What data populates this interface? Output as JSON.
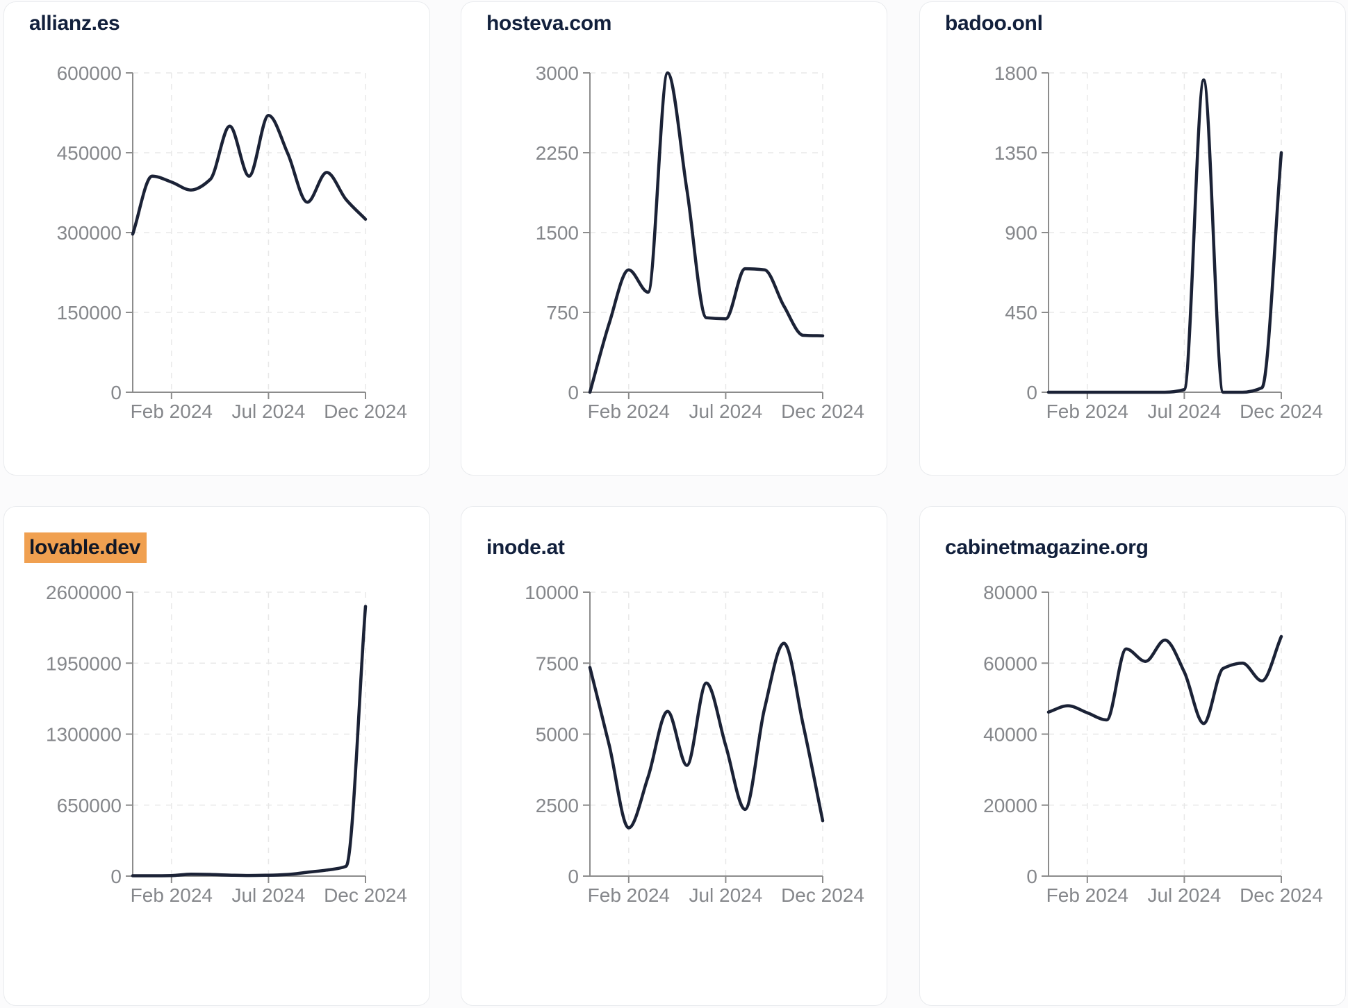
{
  "style": {
    "page_background": "#fbfbfc",
    "card_background": "#ffffff",
    "card_border": "#e9ebee",
    "line_color": "#1b2236",
    "axis_color": "#8c8c8c",
    "tick_label_color": "#85878b",
    "grid_color": "#e8e8e8",
    "title_color": "#12203c",
    "highlight_color": "#f0a050"
  },
  "x_axis": {
    "tick_labels": [
      "Feb 2024",
      "Jul 2024",
      "Dec 2024"
    ],
    "tick_month_indices": [
      2,
      7,
      12
    ]
  },
  "chart_data": [
    {
      "type": "line",
      "title": "allianz.es",
      "highlighted": false,
      "row": 1,
      "col": 1,
      "x": [
        "Dec 2023",
        "Jan 2024",
        "Feb 2024",
        "Mar 2024",
        "Apr 2024",
        "May 2024",
        "Jun 2024",
        "Jul 2024",
        "Aug 2024",
        "Sep 2024",
        "Oct 2024",
        "Nov 2024",
        "Dec 2024"
      ],
      "values": [
        297000,
        406000,
        395000,
        380000,
        400000,
        500000,
        406000,
        520000,
        448000,
        357000,
        413000,
        362000,
        325000
      ],
      "y_ticks": [
        0,
        150000,
        300000,
        450000,
        600000
      ],
      "ylim": [
        0,
        600000
      ],
      "x_tick_labels": [
        "Feb 2024",
        "Jul 2024",
        "Dec 2024"
      ],
      "grid": true,
      "legend": "none"
    },
    {
      "type": "line",
      "title": "hosteva.com",
      "highlighted": false,
      "row": 1,
      "col": 2,
      "x": [
        "Dec 2023",
        "Jan 2024",
        "Feb 2024",
        "Mar 2024",
        "Apr 2024",
        "May 2024",
        "Jun 2024",
        "Jul 2024",
        "Aug 2024",
        "Sep 2024",
        "Oct 2024",
        "Nov 2024",
        "Dec 2024"
      ],
      "values": [
        0,
        650,
        1150,
        940,
        3000,
        1900,
        700,
        690,
        1160,
        1150,
        810,
        535,
        530
      ],
      "y_ticks": [
        0,
        750,
        1500,
        2250,
        3000
      ],
      "ylim": [
        0,
        3000
      ],
      "x_tick_labels": [
        "Feb 2024",
        "Jul 2024",
        "Dec 2024"
      ],
      "grid": true,
      "legend": "none"
    },
    {
      "type": "line",
      "title": "badoo.onl",
      "highlighted": false,
      "row": 1,
      "col": 3,
      "x": [
        "Dec 2023",
        "Jan 2024",
        "Feb 2024",
        "Mar 2024",
        "Apr 2024",
        "May 2024",
        "Jun 2024",
        "Jul 2024",
        "Aug 2024",
        "Sep 2024",
        "Oct 2024",
        "Nov 2024",
        "Dec 2024"
      ],
      "values": [
        0,
        0,
        0,
        0,
        0,
        0,
        0,
        15,
        1760,
        0,
        0,
        25,
        1350
      ],
      "y_ticks": [
        0,
        450,
        900,
        1350,
        1800
      ],
      "ylim": [
        0,
        1800
      ],
      "x_tick_labels": [
        "Feb 2024",
        "Jul 2024",
        "Dec 2024"
      ],
      "grid": true,
      "legend": "none"
    },
    {
      "type": "line",
      "title": "lovable.dev",
      "highlighted": true,
      "row": 2,
      "col": 1,
      "x": [
        "Dec 2023",
        "Jan 2024",
        "Feb 2024",
        "Mar 2024",
        "Apr 2024",
        "May 2024",
        "Jun 2024",
        "Jul 2024",
        "Aug 2024",
        "Sep 2024",
        "Oct 2024",
        "Nov 2024",
        "Dec 2024"
      ],
      "values": [
        3000,
        3000,
        5000,
        18000,
        15000,
        9000,
        6000,
        8000,
        15000,
        35000,
        55000,
        90000,
        2470000
      ],
      "y_ticks": [
        0,
        650000,
        1300000,
        1950000,
        2600000
      ],
      "ylim": [
        0,
        2600000
      ],
      "x_tick_labels": [
        "Feb 2024",
        "Jul 2024",
        "Dec 2024"
      ],
      "grid": true,
      "legend": "none"
    },
    {
      "type": "line",
      "title": "inode.at",
      "highlighted": false,
      "row": 2,
      "col": 2,
      "x": [
        "Dec 2023",
        "Jan 2024",
        "Feb 2024",
        "Mar 2024",
        "Apr 2024",
        "May 2024",
        "Jun 2024",
        "Jul 2024",
        "Aug 2024",
        "Sep 2024",
        "Oct 2024",
        "Nov 2024",
        "Dec 2024"
      ],
      "values": [
        7350,
        4600,
        1700,
        3500,
        5800,
        3900,
        6800,
        4600,
        2350,
        5900,
        8200,
        5300,
        1950
      ],
      "y_ticks": [
        0,
        2500,
        5000,
        7500,
        10000
      ],
      "ylim": [
        0,
        10000
      ],
      "x_tick_labels": [
        "Feb 2024",
        "Jul 2024",
        "Dec 2024"
      ],
      "grid": true,
      "legend": "none"
    },
    {
      "type": "line",
      "title": "cabinetmagazine.org",
      "highlighted": false,
      "row": 2,
      "col": 3,
      "x": [
        "Dec 2023",
        "Jan 2024",
        "Feb 2024",
        "Mar 2024",
        "Apr 2024",
        "May 2024",
        "Jun 2024",
        "Jul 2024",
        "Aug 2024",
        "Sep 2024",
        "Oct 2024",
        "Nov 2024",
        "Dec 2024"
      ],
      "values": [
        46200,
        48000,
        46000,
        44000,
        64000,
        60500,
        66500,
        57500,
        43000,
        58500,
        60000,
        55000,
        67500
      ],
      "y_ticks": [
        0,
        20000,
        40000,
        60000,
        80000
      ],
      "ylim": [
        0,
        80000
      ],
      "x_tick_labels": [
        "Feb 2024",
        "Jul 2024",
        "Dec 2024"
      ],
      "grid": true,
      "legend": "none"
    }
  ]
}
